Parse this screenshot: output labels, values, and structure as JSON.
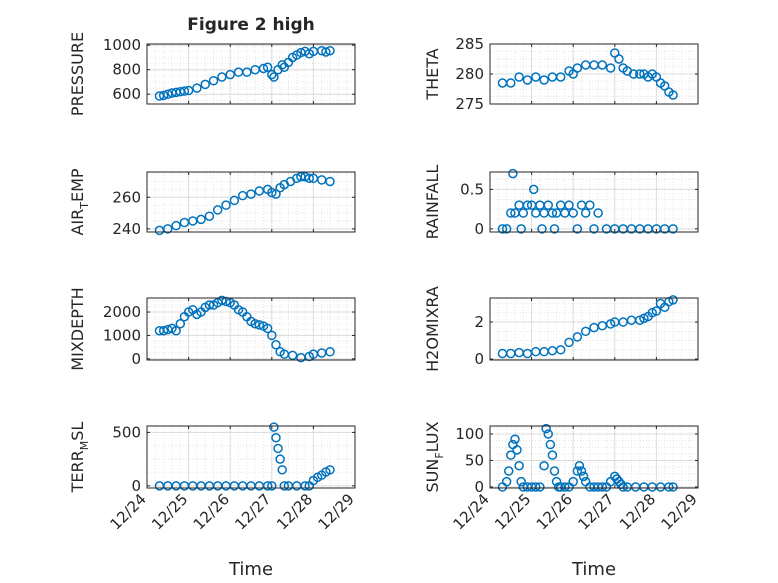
{
  "figure": {
    "title": "Figure 2 high",
    "xlabel": "Time"
  },
  "style": {
    "marker_color": "#0072bd",
    "axis_color": "#262626",
    "grid": true,
    "minor_grid": true,
    "marker": "circle"
  },
  "x_ticks": [
    "12/24",
    "12/25",
    "12/26",
    "12/27",
    "12/28",
    "12/29"
  ],
  "chart_data": [
    {
      "type": "scatter",
      "id": "pressure",
      "ylabel": "PRESSURE",
      "title": "Figure 2 high",
      "yticks": [
        {
          "v": 600,
          "t": "600"
        },
        {
          "v": 800,
          "t": "800"
        },
        {
          "v": 1000,
          "t": "1000"
        }
      ],
      "ylim": [
        520,
        1010
      ],
      "xlim": [
        24,
        29
      ],
      "show_xticks": false,
      "series": [
        {
          "x": [
            24.3,
            24.4,
            24.5,
            24.6,
            24.7,
            24.8,
            24.9,
            25.0,
            25.2,
            25.4,
            25.6,
            25.8,
            26.0,
            26.2,
            26.4,
            26.6,
            26.8,
            26.9,
            27.0,
            27.05,
            27.15,
            27.25,
            27.3,
            27.4,
            27.5,
            27.6,
            27.7,
            27.8,
            27.9,
            28.0,
            28.2,
            28.3,
            28.4
          ],
          "y": [
            585,
            590,
            600,
            610,
            615,
            620,
            625,
            630,
            650,
            680,
            710,
            740,
            760,
            780,
            780,
            800,
            810,
            820,
            760,
            740,
            800,
            840,
            820,
            860,
            900,
            920,
            940,
            950,
            930,
            950,
            955,
            945,
            955
          ]
        }
      ]
    },
    {
      "type": "scatter",
      "id": "theta",
      "ylabel": "THETA",
      "yticks": [
        {
          "v": 275,
          "t": "275"
        },
        {
          "v": 280,
          "t": "280"
        },
        {
          "v": 285,
          "t": "285"
        }
      ],
      "ylim": [
        275,
        285
      ],
      "xlim": [
        24,
        29
      ],
      "show_xticks": false,
      "series": [
        {
          "x": [
            24.3,
            24.5,
            24.7,
            24.9,
            25.1,
            25.3,
            25.5,
            25.7,
            25.9,
            26.0,
            26.1,
            26.3,
            26.5,
            26.7,
            26.9,
            27.0,
            27.1,
            27.2,
            27.3,
            27.45,
            27.6,
            27.7,
            27.8,
            27.9,
            28.0,
            28.1,
            28.2,
            28.3,
            28.4
          ],
          "y": [
            278.5,
            278.5,
            279.5,
            279,
            279.5,
            279,
            279.5,
            279.5,
            280.5,
            280,
            281,
            281.5,
            281.5,
            281.5,
            281,
            283.5,
            282.5,
            281,
            280.5,
            280,
            280,
            280,
            279.5,
            280,
            279.5,
            278.5,
            278,
            277,
            276.5
          ]
        }
      ]
    },
    {
      "type": "scatter",
      "id": "air_temp",
      "ylabel": "AIR",
      "ylabel_sub": "T",
      "ylabel_tail": "EMP",
      "yticks": [
        {
          "v": 240,
          "t": "240"
        },
        {
          "v": 260,
          "t": "260"
        }
      ],
      "ylim": [
        238,
        276
      ],
      "xlim": [
        24,
        29
      ],
      "show_xticks": false,
      "series": [
        {
          "x": [
            24.3,
            24.5,
            24.7,
            24.9,
            25.1,
            25.3,
            25.5,
            25.7,
            25.9,
            26.1,
            26.3,
            26.5,
            26.7,
            26.9,
            27.0,
            27.1,
            27.2,
            27.3,
            27.45,
            27.6,
            27.7,
            27.8,
            27.9,
            28.0,
            28.2,
            28.4
          ],
          "y": [
            239,
            240,
            242,
            244,
            245,
            246,
            248,
            252,
            255,
            258,
            261,
            262,
            264,
            265,
            263,
            262,
            266,
            268,
            270,
            272,
            273,
            273,
            272,
            272,
            271,
            270
          ]
        }
      ]
    },
    {
      "type": "scatter",
      "id": "rainfall",
      "ylabel": "RAINFALL",
      "yticks": [
        {
          "v": 0,
          "t": "0"
        },
        {
          "v": 0.5,
          "t": "0.5"
        }
      ],
      "ylim": [
        -0.04,
        0.72
      ],
      "xlim": [
        24,
        29
      ],
      "show_xticks": false,
      "series": [
        {
          "x": [
            24.3,
            24.4,
            24.5,
            24.55,
            24.6,
            24.7,
            24.75,
            24.8,
            24.9,
            25.0,
            25.05,
            25.1,
            25.2,
            25.25,
            25.3,
            25.4,
            25.5,
            25.55,
            25.6,
            25.7,
            25.8,
            25.9,
            26.0,
            26.1,
            26.2,
            26.3,
            26.4,
            26.5,
            26.6,
            26.8,
            27.0,
            27.2,
            27.4,
            27.6,
            27.8,
            28.0,
            28.2,
            28.4
          ],
          "y": [
            0,
            0,
            0.2,
            0.7,
            0.2,
            0.3,
            0,
            0.2,
            0.3,
            0.3,
            0.5,
            0.2,
            0.3,
            0,
            0.2,
            0.3,
            0.2,
            0,
            0.2,
            0.3,
            0.2,
            0.3,
            0.2,
            0,
            0.3,
            0.2,
            0.3,
            0,
            0.2,
            0,
            0,
            0,
            0,
            0,
            0,
            0,
            0,
            0
          ]
        }
      ]
    },
    {
      "type": "scatter",
      "id": "mixdepth",
      "ylabel": "MIXDEPTH",
      "yticks": [
        {
          "v": 0,
          "t": "0"
        },
        {
          "v": 1000,
          "t": "1000"
        },
        {
          "v": 2000,
          "t": "2000"
        }
      ],
      "ylim": [
        -50,
        2600
      ],
      "xlim": [
        24,
        29
      ],
      "show_xticks": false,
      "series": [
        {
          "x": [
            24.3,
            24.4,
            24.5,
            24.6,
            24.7,
            24.8,
            24.9,
            25.0,
            25.1,
            25.2,
            25.3,
            25.4,
            25.5,
            25.6,
            25.7,
            25.8,
            25.9,
            26.0,
            26.1,
            26.2,
            26.3,
            26.4,
            26.5,
            26.6,
            26.7,
            26.8,
            26.9,
            27.0,
            27.1,
            27.2,
            27.3,
            27.5,
            27.7,
            27.9,
            28.0,
            28.2,
            28.4
          ],
          "y": [
            1200,
            1200,
            1250,
            1300,
            1200,
            1500,
            1800,
            2000,
            2100,
            1900,
            2000,
            2200,
            2300,
            2300,
            2400,
            2500,
            2450,
            2400,
            2300,
            2100,
            2000,
            1800,
            1600,
            1500,
            1450,
            1400,
            1300,
            1000,
            600,
            300,
            200,
            150,
            50,
            100,
            200,
            250,
            300
          ]
        }
      ]
    },
    {
      "type": "scatter",
      "id": "h2omixra",
      "ylabel": "H2OMIXRA",
      "yticks": [
        {
          "v": 0,
          "t": "0"
        },
        {
          "v": 2,
          "t": "2"
        }
      ],
      "ylim": [
        -0.05,
        3.3
      ],
      "xlim": [
        24,
        29
      ],
      "show_xticks": false,
      "series": [
        {
          "x": [
            24.3,
            24.5,
            24.7,
            24.9,
            25.1,
            25.3,
            25.5,
            25.7,
            25.9,
            26.1,
            26.3,
            26.5,
            26.7,
            26.9,
            27.0,
            27.2,
            27.4,
            27.6,
            27.7,
            27.8,
            27.9,
            28.0,
            28.1,
            28.2,
            28.3,
            28.4
          ],
          "y": [
            0.3,
            0.3,
            0.35,
            0.3,
            0.4,
            0.4,
            0.45,
            0.5,
            0.9,
            1.2,
            1.5,
            1.7,
            1.8,
            1.9,
            2.0,
            2.0,
            2.1,
            2.1,
            2.2,
            2.3,
            2.5,
            2.6,
            3.0,
            2.8,
            3.1,
            3.2
          ]
        }
      ]
    },
    {
      "type": "scatter",
      "id": "terr_msl",
      "ylabel": "TERR",
      "ylabel_sub": "M",
      "ylabel_tail": "SL",
      "yticks": [
        {
          "v": 0,
          "t": "0"
        },
        {
          "v": 500,
          "t": "500"
        }
      ],
      "ylim": [
        -20,
        560
      ],
      "xlim": [
        24,
        29
      ],
      "show_xticks": true,
      "series": [
        {
          "x": [
            24.3,
            24.5,
            24.7,
            24.9,
            25.1,
            25.3,
            25.5,
            25.7,
            25.9,
            26.1,
            26.3,
            26.5,
            26.7,
            26.9,
            27.0,
            27.05,
            27.1,
            27.15,
            27.2,
            27.25,
            27.3,
            27.4,
            27.6,
            27.8,
            27.9,
            28.0,
            28.1,
            28.2,
            28.3,
            28.4
          ],
          "y": [
            0,
            0,
            0,
            0,
            0,
            0,
            0,
            0,
            0,
            0,
            0,
            0,
            0,
            0,
            0,
            550,
            450,
            350,
            250,
            150,
            0,
            0,
            0,
            0,
            0,
            50,
            80,
            100,
            130,
            150
          ]
        }
      ]
    },
    {
      "type": "scatter",
      "id": "sun_flux",
      "ylabel": "SUN",
      "ylabel_sub": "F",
      "ylabel_tail": "LUX",
      "yticks": [
        {
          "v": 0,
          "t": "0"
        },
        {
          "v": 50,
          "t": "50"
        },
        {
          "v": 100,
          "t": "100"
        }
      ],
      "ylim": [
        -2,
        115
      ],
      "xlim": [
        24,
        29
      ],
      "show_xticks": true,
      "series": [
        {
          "x": [
            24.3,
            24.4,
            24.45,
            24.5,
            24.55,
            24.6,
            24.65,
            24.7,
            24.75,
            24.8,
            24.9,
            25.0,
            25.1,
            25.2,
            25.3,
            25.35,
            25.4,
            25.45,
            25.5,
            25.55,
            25.6,
            25.65,
            25.7,
            25.8,
            25.9,
            26.0,
            26.1,
            26.15,
            26.2,
            26.25,
            26.3,
            26.4,
            26.5,
            26.6,
            26.7,
            26.8,
            26.9,
            27.0,
            27.05,
            27.1,
            27.15,
            27.2,
            27.3,
            27.5,
            27.7,
            27.9,
            28.1,
            28.3,
            28.4
          ],
          "y": [
            0,
            10,
            30,
            60,
            80,
            90,
            70,
            40,
            10,
            0,
            0,
            0,
            0,
            0,
            40,
            110,
            100,
            80,
            60,
            30,
            10,
            0,
            0,
            0,
            0,
            10,
            30,
            40,
            30,
            20,
            10,
            0,
            0,
            0,
            0,
            0,
            10,
            20,
            15,
            10,
            5,
            0,
            0,
            0,
            0,
            0,
            0,
            0,
            0
          ]
        }
      ]
    }
  ]
}
